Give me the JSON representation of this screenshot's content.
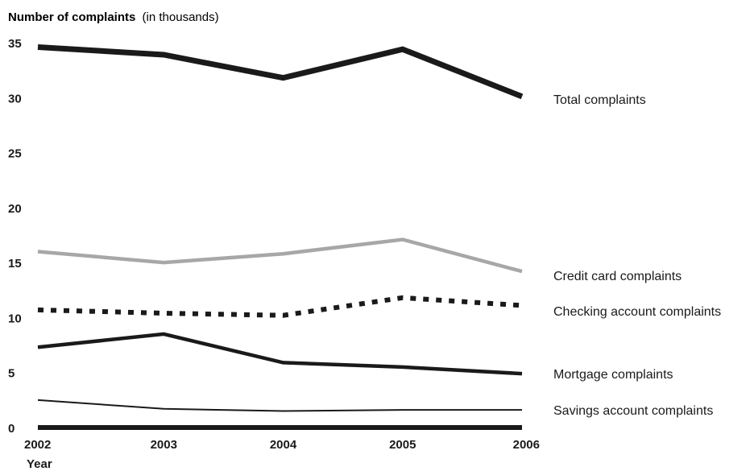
{
  "chart_data": {
    "type": "line",
    "title": "",
    "ylabel_bold": "Number of complaints",
    "ylabel_rest": "(in thousands)",
    "xlabel": "Year",
    "x": [
      "2002",
      "2003",
      "2004",
      "2005",
      "2006"
    ],
    "yticks": [
      "0",
      "5",
      "10",
      "15",
      "20",
      "25",
      "30",
      "35"
    ],
    "ylim": [
      0,
      35
    ],
    "grid": false,
    "series": [
      {
        "name": "Total complaints",
        "values": [
          34.6,
          33.9,
          31.8,
          34.4,
          30.1
        ],
        "color": "#1a1a1a",
        "style": "thick"
      },
      {
        "name": "Credit card complaints",
        "values": [
          16.0,
          15.0,
          15.8,
          17.1,
          14.2
        ],
        "color": "#a7a7a7",
        "style": "medium"
      },
      {
        "name": "Checking account complaints",
        "values": [
          10.7,
          10.4,
          10.2,
          11.8,
          11.1
        ],
        "color": "#1a1a1a",
        "style": "dotted"
      },
      {
        "name": "Mortgage complaints",
        "values": [
          7.3,
          8.5,
          5.9,
          5.5,
          4.9
        ],
        "color": "#1a1a1a",
        "style": "medium"
      },
      {
        "name": "Savings account complaints",
        "values": [
          2.5,
          1.7,
          1.5,
          1.6,
          1.6
        ],
        "color": "#1a1a1a",
        "style": "thin"
      }
    ]
  }
}
